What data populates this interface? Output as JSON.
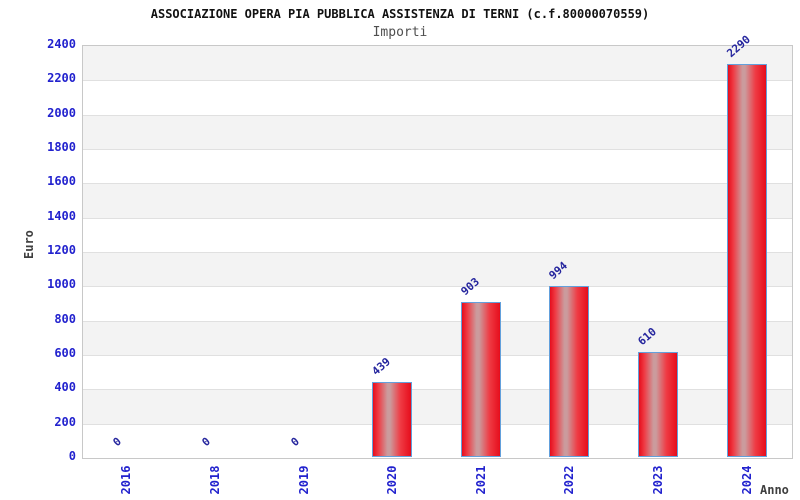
{
  "header": {
    "title": "ASSOCIAZIONE OPERA PIA PUBBLICA ASSISTENZA DI TERNI (c.f.80000070559)",
    "subtitle": "Importi"
  },
  "chart_data": {
    "type": "bar",
    "title": "ASSOCIAZIONE OPERA PIA PUBBLICA ASSISTENZA DI TERNI (c.f.80000070559)",
    "subtitle": "Importi",
    "xlabel": "Anno",
    "ylabel": "Euro",
    "categories": [
      "2016",
      "2018",
      "2019",
      "2020",
      "2021",
      "2022",
      "2023",
      "2024"
    ],
    "values": [
      0,
      0,
      0,
      439,
      903,
      994,
      610,
      2290
    ],
    "ylim": [
      0,
      2400
    ],
    "ytick_step": 200,
    "yticks": [
      0,
      200,
      400,
      600,
      800,
      1000,
      1200,
      1400,
      1600,
      1800,
      2000,
      2200,
      2400
    ],
    "grid": true,
    "legend": "none",
    "colors": {
      "tick_label": "#2222ce",
      "value_label": "#26269e",
      "bar_edge_red": "#e60d1c",
      "bar_mid_red": "#ef3b44",
      "bar_center_light": "#cb9b9d",
      "bar_border": "#62a0dc",
      "band_gray": "#f3f3f3",
      "band_white": "#ffffff",
      "gridline": "#e0e0e0",
      "plot_border": "#c8c8c8",
      "axis_text": "#3f3f3f",
      "title_text": "#111111",
      "subtitle_text": "#4f4f4f"
    }
  }
}
